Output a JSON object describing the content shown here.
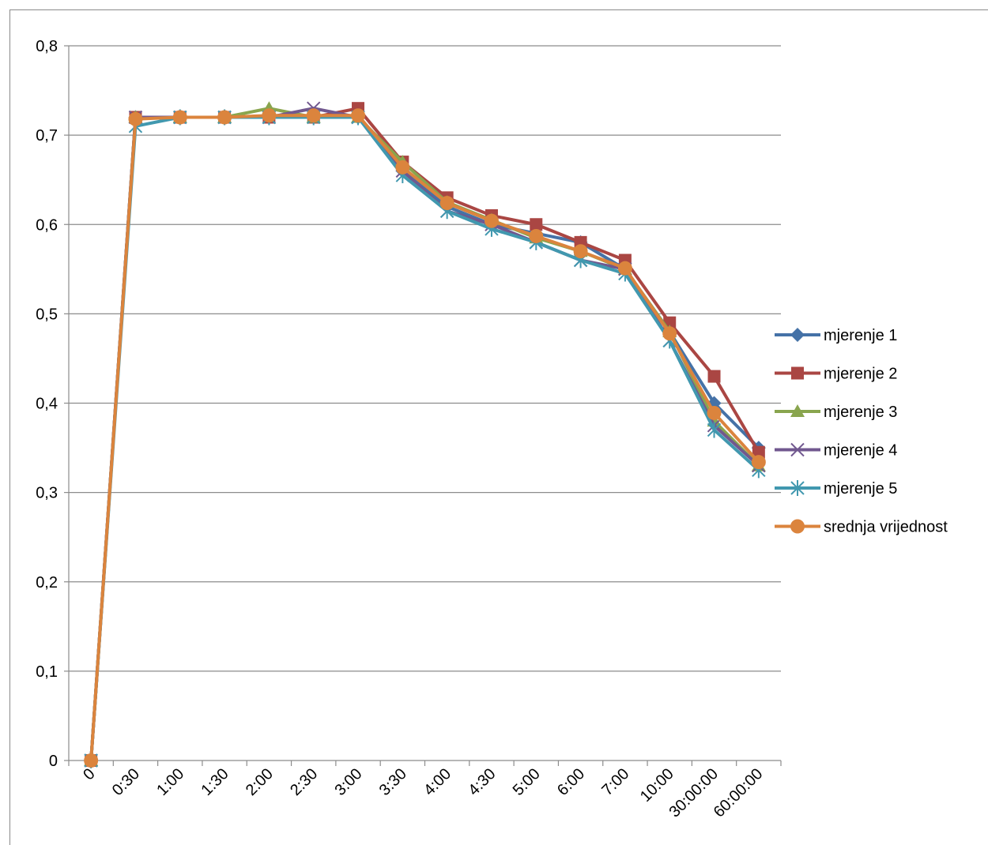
{
  "chart_data": {
    "type": "line",
    "title": "",
    "xlabel": "",
    "ylabel": "",
    "categories": [
      "0",
      "0:30",
      "1:00",
      "1:30",
      "2:00",
      "2:30",
      "3:00",
      "3:30",
      "4:00",
      "4:30",
      "5:00",
      "6:00",
      "7:00",
      "10:00",
      "30:00:00",
      "60:00:00"
    ],
    "ylim": [
      0,
      0.8
    ],
    "yticks": [
      0,
      0.1,
      0.2,
      0.3,
      0.4,
      0.5,
      0.6,
      0.7,
      0.8
    ],
    "ytick_labels": [
      "0",
      "0,1",
      "0,2",
      "0,3",
      "0,4",
      "0,5",
      "0,6",
      "0,7",
      "0,8"
    ],
    "grid": "horizontal",
    "legend_position": "right",
    "series": [
      {
        "name": "mjerenje 1",
        "color": "#4572A7",
        "marker": "diamond",
        "values": [
          0,
          0.72,
          0.72,
          0.72,
          0.72,
          0.72,
          0.72,
          0.66,
          0.62,
          0.6,
          0.59,
          0.58,
          0.55,
          0.48,
          0.4,
          0.35
        ]
      },
      {
        "name": "mjerenje 2",
        "color": "#AA4643",
        "marker": "square",
        "values": [
          0,
          0.72,
          0.72,
          0.72,
          0.72,
          0.72,
          0.73,
          0.67,
          0.63,
          0.61,
          0.6,
          0.58,
          0.56,
          0.49,
          0.43,
          0.345
        ]
      },
      {
        "name": "mjerenje 3",
        "color": "#89A54E",
        "marker": "triangle",
        "values": [
          0,
          0.72,
          0.72,
          0.72,
          0.73,
          0.72,
          0.72,
          0.67,
          0.625,
          0.605,
          0.585,
          0.57,
          0.55,
          0.48,
          0.38,
          0.33
        ]
      },
      {
        "name": "mjerenje 4",
        "color": "#71588F",
        "marker": "x",
        "values": [
          0,
          0.72,
          0.72,
          0.72,
          0.72,
          0.73,
          0.72,
          0.66,
          0.615,
          0.6,
          0.58,
          0.56,
          0.55,
          0.47,
          0.375,
          0.33
        ]
      },
      {
        "name": "mjerenje 5",
        "color": "#4198AF",
        "marker": "star",
        "values": [
          0,
          0.71,
          0.72,
          0.72,
          0.72,
          0.72,
          0.72,
          0.655,
          0.615,
          0.595,
          0.58,
          0.56,
          0.545,
          0.47,
          0.37,
          0.325
        ]
      },
      {
        "name": "srednja vrijednost",
        "color": "#DB843D",
        "marker": "circle",
        "values": [
          0,
          0.718,
          0.72,
          0.72,
          0.722,
          0.722,
          0.722,
          0.664,
          0.624,
          0.604,
          0.587,
          0.57,
          0.551,
          0.478,
          0.389,
          0.334
        ]
      }
    ]
  }
}
